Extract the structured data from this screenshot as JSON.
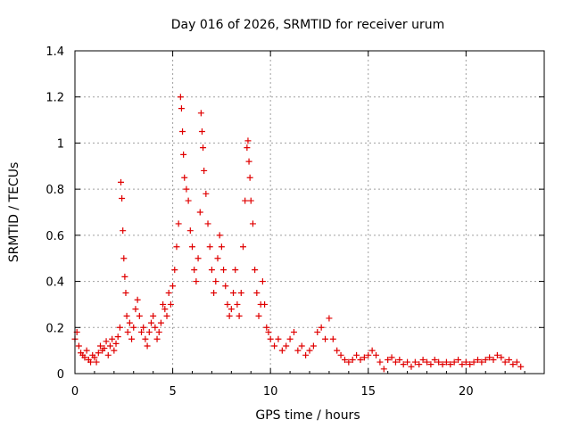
{
  "chart_data": {
    "type": "scatter",
    "title": "Day 016 of 2026, SRMTID for receiver urum",
    "xlabel": "GPS time / hours",
    "ylabel": "SRMTID / TECUs",
    "xlim": [
      0,
      24
    ],
    "ylim": [
      0,
      1.4
    ],
    "x_ticks": [
      "0",
      "5",
      "10",
      "15",
      "20"
    ],
    "x_tick_values": [
      0,
      5,
      10,
      15,
      20
    ],
    "y_ticks": [
      "0",
      "0.2",
      "0.4",
      "0.6",
      "0.8",
      "1",
      "1.2",
      "1.4"
    ],
    "y_tick_values": [
      0,
      0.2,
      0.4,
      0.6,
      0.8,
      1.0,
      1.2,
      1.4
    ],
    "grid": true,
    "marker": "+",
    "series_color": "#e00000",
    "series": [
      {
        "name": "SRMTID",
        "points": [
          [
            0.0,
            0.15
          ],
          [
            0.1,
            0.18
          ],
          [
            0.2,
            0.12
          ],
          [
            0.3,
            0.09
          ],
          [
            0.4,
            0.08
          ],
          [
            0.5,
            0.07
          ],
          [
            0.6,
            0.1
          ],
          [
            0.7,
            0.06
          ],
          [
            0.8,
            0.05
          ],
          [
            0.9,
            0.08
          ],
          [
            1.0,
            0.07
          ],
          [
            1.1,
            0.05
          ],
          [
            1.2,
            0.09
          ],
          [
            1.3,
            0.12
          ],
          [
            1.4,
            0.1
          ],
          [
            1.5,
            0.11
          ],
          [
            1.6,
            0.14
          ],
          [
            1.7,
            0.08
          ],
          [
            1.8,
            0.12
          ],
          [
            1.9,
            0.15
          ],
          [
            2.0,
            0.1
          ],
          [
            2.1,
            0.13
          ],
          [
            2.2,
            0.16
          ],
          [
            2.3,
            0.2
          ],
          [
            2.35,
            0.83
          ],
          [
            2.4,
            0.76
          ],
          [
            2.45,
            0.62
          ],
          [
            2.5,
            0.5
          ],
          [
            2.55,
            0.42
          ],
          [
            2.6,
            0.35
          ],
          [
            2.65,
            0.25
          ],
          [
            2.7,
            0.18
          ],
          [
            2.8,
            0.22
          ],
          [
            2.9,
            0.15
          ],
          [
            3.0,
            0.2
          ],
          [
            3.1,
            0.28
          ],
          [
            3.2,
            0.32
          ],
          [
            3.3,
            0.25
          ],
          [
            3.4,
            0.18
          ],
          [
            3.5,
            0.2
          ],
          [
            3.6,
            0.15
          ],
          [
            3.7,
            0.12
          ],
          [
            3.8,
            0.18
          ],
          [
            3.9,
            0.22
          ],
          [
            4.0,
            0.25
          ],
          [
            4.1,
            0.2
          ],
          [
            4.2,
            0.15
          ],
          [
            4.3,
            0.18
          ],
          [
            4.4,
            0.22
          ],
          [
            4.5,
            0.3
          ],
          [
            4.6,
            0.28
          ],
          [
            4.7,
            0.25
          ],
          [
            4.8,
            0.35
          ],
          [
            4.9,
            0.3
          ],
          [
            5.0,
            0.38
          ],
          [
            5.1,
            0.45
          ],
          [
            5.2,
            0.55
          ],
          [
            5.3,
            0.65
          ],
          [
            5.4,
            1.2
          ],
          [
            5.45,
            1.15
          ],
          [
            5.5,
            1.05
          ],
          [
            5.55,
            0.95
          ],
          [
            5.6,
            0.85
          ],
          [
            5.7,
            0.8
          ],
          [
            5.8,
            0.75
          ],
          [
            5.9,
            0.62
          ],
          [
            6.0,
            0.55
          ],
          [
            6.1,
            0.45
          ],
          [
            6.2,
            0.4
          ],
          [
            6.3,
            0.5
          ],
          [
            6.4,
            0.7
          ],
          [
            6.45,
            1.13
          ],
          [
            6.5,
            1.05
          ],
          [
            6.55,
            0.98
          ],
          [
            6.6,
            0.88
          ],
          [
            6.7,
            0.78
          ],
          [
            6.8,
            0.65
          ],
          [
            6.9,
            0.55
          ],
          [
            7.0,
            0.45
          ],
          [
            7.1,
            0.35
          ],
          [
            7.2,
            0.4
          ],
          [
            7.3,
            0.5
          ],
          [
            7.4,
            0.6
          ],
          [
            7.5,
            0.55
          ],
          [
            7.6,
            0.45
          ],
          [
            7.7,
            0.38
          ],
          [
            7.8,
            0.3
          ],
          [
            7.9,
            0.25
          ],
          [
            8.0,
            0.28
          ],
          [
            8.1,
            0.35
          ],
          [
            8.2,
            0.45
          ],
          [
            8.3,
            0.3
          ],
          [
            8.4,
            0.25
          ],
          [
            8.5,
            0.35
          ],
          [
            8.6,
            0.55
          ],
          [
            8.7,
            0.75
          ],
          [
            8.8,
            0.98
          ],
          [
            8.85,
            1.01
          ],
          [
            8.9,
            0.92
          ],
          [
            8.95,
            0.85
          ],
          [
            9.0,
            0.75
          ],
          [
            9.1,
            0.65
          ],
          [
            9.2,
            0.45
          ],
          [
            9.3,
            0.35
          ],
          [
            9.4,
            0.25
          ],
          [
            9.5,
            0.3
          ],
          [
            9.6,
            0.4
          ],
          [
            9.7,
            0.3
          ],
          [
            9.8,
            0.2
          ],
          [
            9.9,
            0.18
          ],
          [
            10.0,
            0.15
          ],
          [
            10.2,
            0.12
          ],
          [
            10.4,
            0.15
          ],
          [
            10.6,
            0.1
          ],
          [
            10.8,
            0.12
          ],
          [
            11.0,
            0.15
          ],
          [
            11.2,
            0.18
          ],
          [
            11.4,
            0.1
          ],
          [
            11.6,
            0.12
          ],
          [
            11.8,
            0.08
          ],
          [
            12.0,
            0.1
          ],
          [
            12.2,
            0.12
          ],
          [
            12.4,
            0.18
          ],
          [
            12.6,
            0.2
          ],
          [
            12.8,
            0.15
          ],
          [
            13.0,
            0.24
          ],
          [
            13.2,
            0.15
          ],
          [
            13.4,
            0.1
          ],
          [
            13.6,
            0.08
          ],
          [
            13.8,
            0.06
          ],
          [
            14.0,
            0.05
          ],
          [
            14.2,
            0.06
          ],
          [
            14.4,
            0.08
          ],
          [
            14.6,
            0.06
          ],
          [
            14.8,
            0.07
          ],
          [
            15.0,
            0.08
          ],
          [
            15.2,
            0.1
          ],
          [
            15.4,
            0.08
          ],
          [
            15.6,
            0.05
          ],
          [
            15.8,
            0.02
          ],
          [
            16.0,
            0.06
          ],
          [
            16.2,
            0.07
          ],
          [
            16.4,
            0.05
          ],
          [
            16.6,
            0.06
          ],
          [
            16.8,
            0.04
          ],
          [
            17.0,
            0.05
          ],
          [
            17.2,
            0.03
          ],
          [
            17.4,
            0.05
          ],
          [
            17.6,
            0.04
          ],
          [
            17.8,
            0.06
          ],
          [
            18.0,
            0.05
          ],
          [
            18.2,
            0.04
          ],
          [
            18.4,
            0.06
          ],
          [
            18.6,
            0.05
          ],
          [
            18.8,
            0.04
          ],
          [
            19.0,
            0.05
          ],
          [
            19.2,
            0.04
          ],
          [
            19.4,
            0.05
          ],
          [
            19.6,
            0.06
          ],
          [
            19.8,
            0.04
          ],
          [
            20.0,
            0.05
          ],
          [
            20.2,
            0.04
          ],
          [
            20.4,
            0.05
          ],
          [
            20.6,
            0.06
          ],
          [
            20.8,
            0.05
          ],
          [
            21.0,
            0.06
          ],
          [
            21.2,
            0.07
          ],
          [
            21.4,
            0.06
          ],
          [
            21.6,
            0.08
          ],
          [
            21.8,
            0.07
          ],
          [
            22.0,
            0.05
          ],
          [
            22.2,
            0.06
          ],
          [
            22.4,
            0.04
          ],
          [
            22.6,
            0.05
          ],
          [
            22.8,
            0.03
          ]
        ]
      }
    ]
  }
}
